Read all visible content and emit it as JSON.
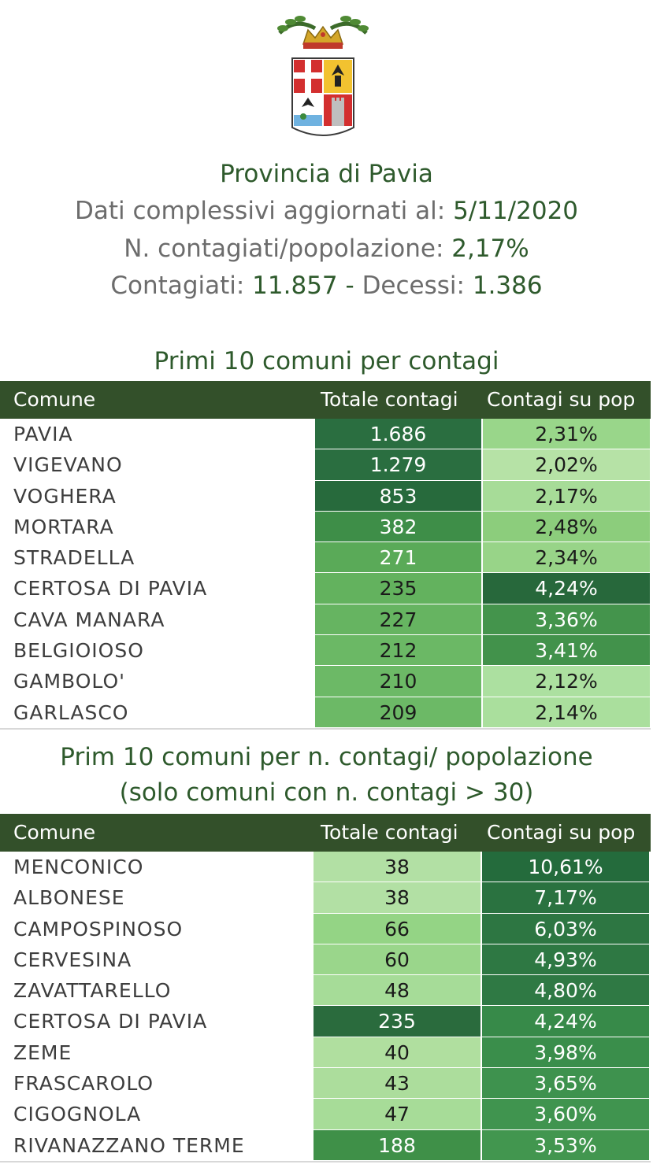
{
  "header": {
    "title": "Provincia di Pavia",
    "line1_label": "Dati complessivi aggiornati al: ",
    "line1_value": "5/11/2020",
    "line2_label": "N. contagiati/popolazione: ",
    "line2_value": "2,17%",
    "line3_label_a": "Contagiati: ",
    "line3_value_a": "11.857",
    "line3_sep": " - ",
    "line3_label_b": "Decessi: ",
    "line3_value_b": "1.386"
  },
  "table1": {
    "title": "Primi 10 comuni per contagi",
    "columns": [
      "Comune",
      "Totale contagi",
      "Contagi su pop"
    ],
    "rows": [
      {
        "name": "PAVIA",
        "total": "1.686",
        "pct": "2,31%",
        "c1": "#2a6e40",
        "t1": "#ffffff",
        "c2": "#99d68a",
        "t2": "#1a1a1a"
      },
      {
        "name": "VIGEVANO",
        "total": "1.279",
        "pct": "2,02%",
        "c1": "#2a6e40",
        "t1": "#ffffff",
        "c2": "#b6e2a6",
        "t2": "#1a1a1a"
      },
      {
        "name": "VOGHERA",
        "total": "853",
        "pct": "2,17%",
        "c1": "#276a3c",
        "t1": "#ffffff",
        "c2": "#a7dc98",
        "t2": "#1a1a1a"
      },
      {
        "name": "MORTARA",
        "total": "382",
        "pct": "2,48%",
        "c1": "#3e8e48",
        "t1": "#ffffff",
        "c2": "#8ccd7c",
        "t2": "#1a1a1a"
      },
      {
        "name": "STRADELLA",
        "total": "271",
        "pct": "2,34%",
        "c1": "#5aaa58",
        "t1": "#ffffff",
        "c2": "#98d488",
        "t2": "#1a1a1a"
      },
      {
        "name": "CERTOSA DI PAVIA",
        "total": "235",
        "pct": "4,24%",
        "c1": "#63b25e",
        "t1": "#1a1a1a",
        "c2": "#27683b",
        "t2": "#ffffff"
      },
      {
        "name": "CAVA MANARA",
        "total": "227",
        "pct": "3,36%",
        "c1": "#66b461",
        "t1": "#1a1a1a",
        "c2": "#44944c",
        "t2": "#ffffff"
      },
      {
        "name": "BELGIOIOSO",
        "total": "212",
        "pct": "3,41%",
        "c1": "#6bb865",
        "t1": "#1a1a1a",
        "c2": "#42924b",
        "t2": "#ffffff"
      },
      {
        "name": "GAMBOLO'",
        "total": "210",
        "pct": "2,12%",
        "c1": "#6cb966",
        "t1": "#1a1a1a",
        "c2": "#ace0a0",
        "t2": "#1a1a1a"
      },
      {
        "name": "GARLASCO",
        "total": "209",
        "pct": "2,14%",
        "c1": "#6cb966",
        "t1": "#1a1a1a",
        "c2": "#aadf9d",
        "t2": "#1a1a1a"
      }
    ]
  },
  "table2": {
    "title_line1": "Prim 10 comuni per n. contagi/ popolazione",
    "title_line2": "(solo comuni con n. contagi > 30)",
    "columns": [
      "Comune",
      "Totale contagi",
      "Contagi su pop"
    ],
    "rows": [
      {
        "name": "MENCONICO",
        "total": "38",
        "pct": "10,61%",
        "c1": "#b2e0a4",
        "t1": "#1a1a1a",
        "c2": "#246b3c",
        "t2": "#ffffff"
      },
      {
        "name": "ALBONESE",
        "total": "38",
        "pct": "7,17%",
        "c1": "#b2e0a4",
        "t1": "#1a1a1a",
        "c2": "#2a7240",
        "t2": "#ffffff"
      },
      {
        "name": "CAMPOSPINOSO",
        "total": "66",
        "pct": "6,03%",
        "c1": "#94d485",
        "t1": "#1a1a1a",
        "c2": "#2d7642",
        "t2": "#ffffff"
      },
      {
        "name": "CERVESINA",
        "total": "60",
        "pct": "4,93%",
        "c1": "#9ad68b",
        "t1": "#1a1a1a",
        "c2": "#2e7843",
        "t2": "#ffffff"
      },
      {
        "name": "ZAVATTARELLO",
        "total": "48",
        "pct": "4,80%",
        "c1": "#a6dc98",
        "t1": "#1a1a1a",
        "c2": "#2f7944",
        "t2": "#ffffff"
      },
      {
        "name": "CERTOSA DI PAVIA",
        "total": "235",
        "pct": "4,24%",
        "c1": "#2a6b3d",
        "t1": "#ffffff",
        "c2": "#378a49",
        "t2": "#ffffff"
      },
      {
        "name": "ZEME",
        "total": "40",
        "pct": "3,98%",
        "c1": "#b0df9f",
        "t1": "#1a1a1a",
        "c2": "#3a8e4b",
        "t2": "#ffffff"
      },
      {
        "name": "FRASCAROLO",
        "total": "43",
        "pct": "3,65%",
        "c1": "#acdd9c",
        "t1": "#1a1a1a",
        "c2": "#3e924e",
        "t2": "#ffffff"
      },
      {
        "name": "CIGOGNOLA",
        "total": "47",
        "pct": "3,60%",
        "c1": "#a7dc98",
        "t1": "#1a1a1a",
        "c2": "#40944f",
        "t2": "#ffffff"
      },
      {
        "name": "RIVANAZZANO TERME",
        "total": "188",
        "pct": "3,53%",
        "c1": "#3f9048",
        "t1": "#ffffff",
        "c2": "#42964f",
        "t2": "#ffffff"
      }
    ]
  }
}
